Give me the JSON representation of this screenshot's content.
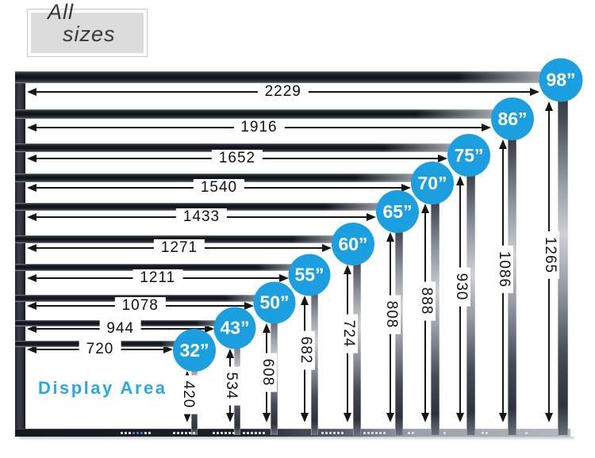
{
  "title_box": {
    "line1": "All",
    "line2": "sizes"
  },
  "display_area_label": "Display Area",
  "colors": {
    "badge_blue": "#1b9fe0",
    "display_area_text": "#2aa7e6",
    "measure_text": "#111111"
  },
  "displays": [
    {
      "inches": "98",
      "size_label": "98”",
      "width_mm": "2229",
      "height_mm": "1265"
    },
    {
      "inches": "86",
      "size_label": "86”",
      "width_mm": "1916",
      "height_mm": "1086"
    },
    {
      "inches": "75",
      "size_label": "75”",
      "width_mm": "1652",
      "height_mm": "930"
    },
    {
      "inches": "70",
      "size_label": "70”",
      "width_mm": "1540",
      "height_mm": "888"
    },
    {
      "inches": "65",
      "size_label": "65”",
      "width_mm": "1433",
      "height_mm": "808"
    },
    {
      "inches": "60",
      "size_label": "60”",
      "width_mm": "1271",
      "height_mm": "724"
    },
    {
      "inches": "55",
      "size_label": "55”",
      "width_mm": "1211",
      "height_mm": "682"
    },
    {
      "inches": "50",
      "size_label": "50”",
      "width_mm": "1078",
      "height_mm": "608"
    },
    {
      "inches": "43",
      "size_label": "43”",
      "width_mm": "944",
      "height_mm": "534"
    },
    {
      "inches": "32",
      "size_label": "32”",
      "width_mm": "720",
      "height_mm": "420"
    }
  ]
}
